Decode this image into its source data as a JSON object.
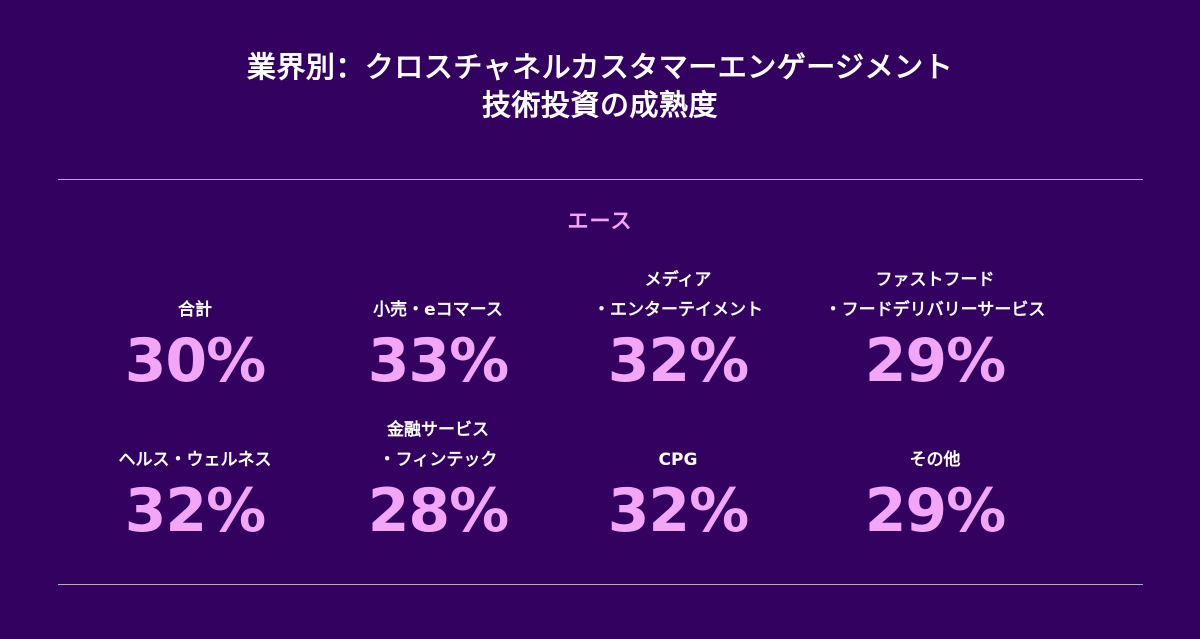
{
  "title": {
    "line1": "業界別：クロスチャネルカスタマーエンゲージメント",
    "line2": "技術投資の成熟度"
  },
  "subtitle": "エース",
  "colors": {
    "background": "#330160",
    "accent": "#f3a6f8",
    "rule": "#b9a6cf"
  },
  "stats": [
    {
      "label1": "",
      "label2": "合計",
      "value": "30%"
    },
    {
      "label1": "",
      "label2": "小売・eコマース",
      "value": "33%"
    },
    {
      "label1": "メディア",
      "label2": "・エンターテイメント",
      "value": "32%"
    },
    {
      "label1": "ファストフード",
      "label2": "・フードデリバリーサービス",
      "value": "29%"
    },
    {
      "label1": "",
      "label2": "ヘルス・ウェルネス",
      "value": "32%"
    },
    {
      "label1": "金融サービス",
      "label2": "・フィンテック",
      "value": "28%"
    },
    {
      "label1": "",
      "label2": "CPG",
      "value": "32%"
    },
    {
      "label1": "",
      "label2": "その他",
      "value": "29%"
    }
  ]
}
